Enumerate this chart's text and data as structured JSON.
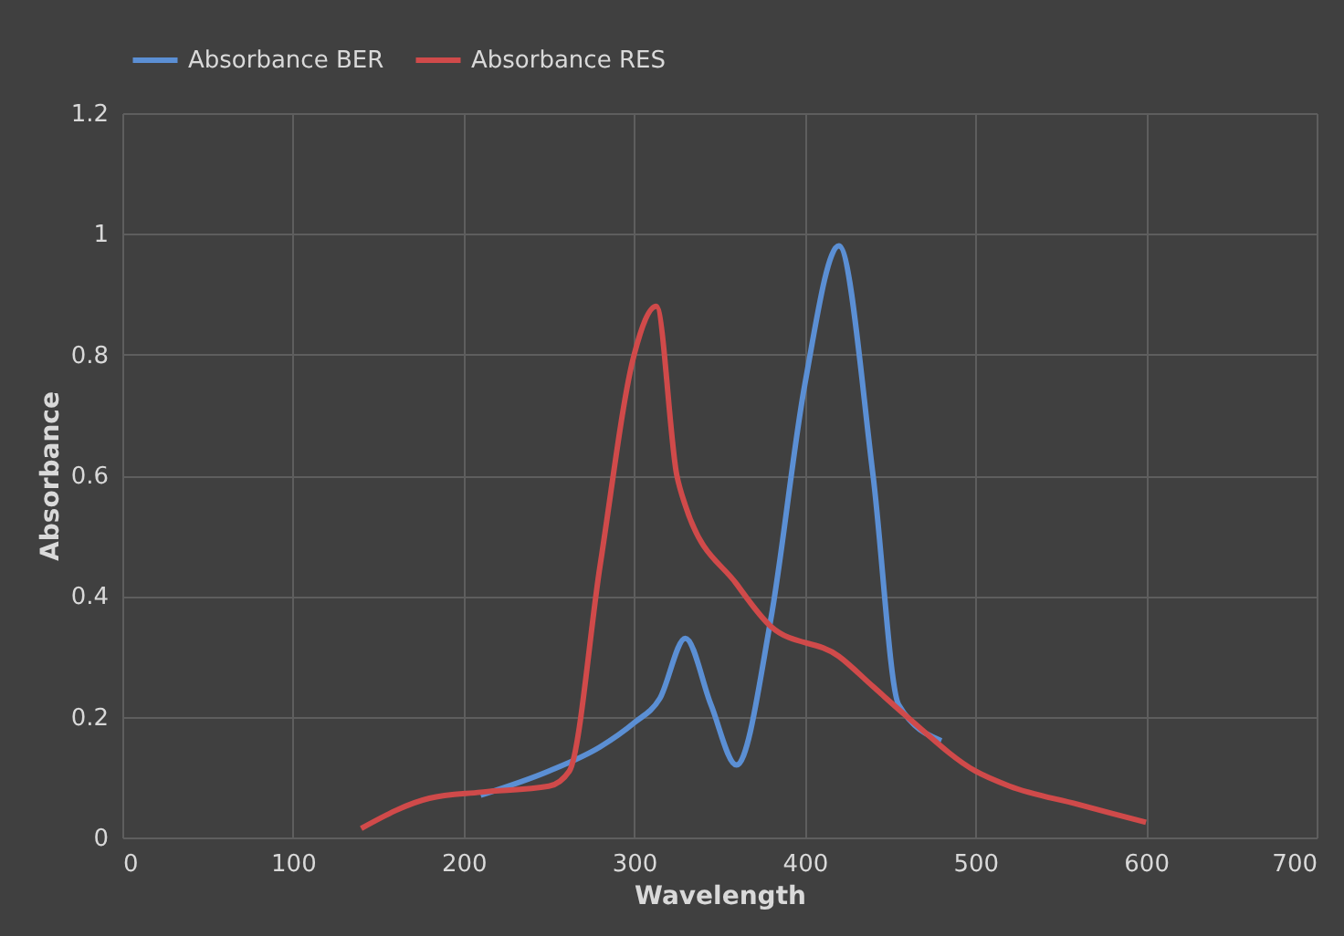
{
  "chart_data": {
    "type": "line",
    "xlabel": "Wavelength",
    "ylabel": "Absorbance",
    "xlim": [
      0,
      700
    ],
    "xticks": [
      0,
      100,
      200,
      300,
      400,
      500,
      600,
      700
    ],
    "ylim": [
      0,
      1.2
    ],
    "yticks": [
      0,
      0.2,
      0.4,
      0.6,
      0.8,
      1,
      1.2
    ],
    "grid": true,
    "legend": "top",
    "marker": "none",
    "line_style": "solid",
    "series": [
      {
        "name": "Absorbance BER",
        "color": "#5b8fd4",
        "x": [
          210,
          250,
          280,
          300,
          315,
          330,
          345,
          360,
          380,
          400,
          420,
          440,
          455,
          480
        ],
        "values": [
          0.07,
          0.11,
          0.15,
          0.19,
          0.23,
          0.33,
          0.22,
          0.12,
          0.36,
          0.75,
          0.98,
          0.6,
          0.22,
          0.16
        ]
      },
      {
        "name": "Absorbance RES",
        "color": "#d04a4a",
        "x": [
          140,
          180,
          210,
          250,
          262,
          280,
          300,
          313,
          325,
          330,
          360,
          380,
          420,
          440,
          460,
          500,
          520,
          560,
          600
        ],
        "values": [
          0.015,
          0.065,
          0.075,
          0.085,
          0.11,
          0.45,
          0.8,
          0.88,
          0.6,
          0.55,
          0.42,
          0.35,
          0.3,
          0.25,
          0.2,
          0.11,
          0.085,
          0.055,
          0.025
        ]
      }
    ]
  }
}
